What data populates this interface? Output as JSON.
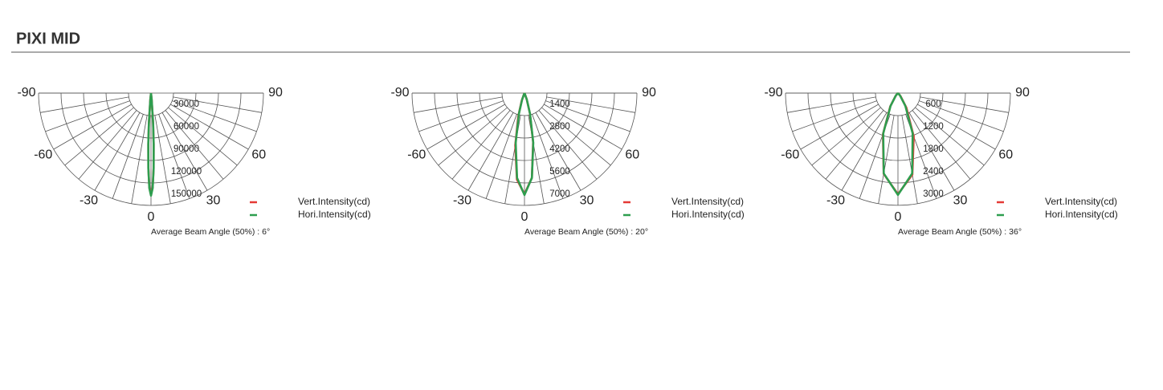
{
  "header": {
    "title": "PIXI MID"
  },
  "chart_data": [
    {
      "type": "polar",
      "thetalim": [
        -90,
        90
      ],
      "thetaticks": [
        -90,
        -60,
        -30,
        0,
        30,
        60,
        90
      ],
      "rlim": [
        0,
        150000
      ],
      "rticks": [
        30000,
        60000,
        90000,
        120000,
        150000
      ],
      "x": [
        -10,
        -6,
        -4,
        -3,
        -2,
        -1,
        0,
        1,
        2,
        3,
        4,
        6,
        10
      ],
      "series": [
        {
          "name": "Vert.Intensity(cd)",
          "color": "#e53935",
          "values": [
            0,
            8500,
            40000,
            68000,
            100000,
            126000,
            136000,
            126000,
            100000,
            68000,
            40000,
            8500,
            0
          ]
        },
        {
          "name": "Hori.Intensity(cd)",
          "color": "#2e9e4f",
          "values": [
            0,
            9000,
            41000,
            69000,
            101000,
            127000,
            137000,
            127000,
            101000,
            69000,
            41000,
            9000,
            0
          ]
        }
      ],
      "caption": "Average Beam Angle (50%) : 6°"
    },
    {
      "type": "polar",
      "thetalim": [
        -90,
        90
      ],
      "thetaticks": [
        -90,
        -60,
        -30,
        0,
        30,
        60,
        90
      ],
      "rlim": [
        0,
        7000
      ],
      "rticks": [
        1400,
        2800,
        4200,
        5600,
        7000
      ],
      "x": [
        -40,
        -30,
        -20,
        -15,
        -10,
        -5,
        0,
        5,
        10,
        15,
        20,
        30,
        40
      ],
      "series": [
        {
          "name": "Vert.Intensity(cd)",
          "color": "#e53935",
          "values": [
            0,
            30,
            500,
            1500,
            3300,
            5400,
            6300,
            5300,
            3100,
            1300,
            400,
            20,
            0
          ]
        },
        {
          "name": "Hori.Intensity(cd)",
          "color": "#2e9e4f",
          "values": [
            0,
            20,
            420,
            1350,
            3150,
            5300,
            6350,
            5300,
            3150,
            1350,
            420,
            20,
            0
          ]
        }
      ],
      "caption": "Average Beam Angle (50%) : 20°"
    },
    {
      "type": "polar",
      "thetalim": [
        -90,
        90
      ],
      "thetaticks": [
        -90,
        -60,
        -30,
        0,
        30,
        60,
        90
      ],
      "rlim": [
        0,
        3000
      ],
      "rticks": [
        600,
        1200,
        1800,
        2400,
        3000
      ],
      "x": [
        -60,
        -50,
        -40,
        -30,
        -20,
        -10,
        0,
        10,
        20,
        30,
        40,
        50,
        60
      ],
      "series": [
        {
          "name": "Vert.Intensity(cd)",
          "color": "#e53935",
          "values": [
            0,
            14,
            95,
            410,
            1170,
            2190,
            2700,
            2210,
            1230,
            450,
            110,
            15,
            0
          ]
        },
        {
          "name": "Hori.Intensity(cd)",
          "color": "#2e9e4f",
          "values": [
            0,
            13,
            89,
            394,
            1148,
            2180,
            2720,
            2180,
            1148,
            394,
            89,
            13,
            0
          ]
        }
      ],
      "caption": "Average Beam Angle (50%) : 36°"
    }
  ]
}
